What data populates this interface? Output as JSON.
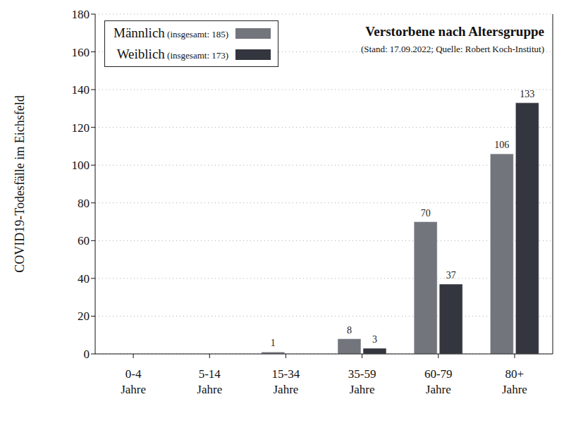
{
  "chart_data": {
    "type": "bar",
    "title": "Verstorbene nach Altersgruppe",
    "subtitle": "(Stand: 17.09.2022; Quelle: Robert Koch-Institut)",
    "y_label": "COVID19-Todesfälle im Eichsfeld",
    "categories": [
      "0-4 Jahre",
      "5-14 Jahre",
      "15-34 Jahre",
      "35-59 Jahre",
      "60-79 Jahre",
      "80+ Jahre"
    ],
    "series": [
      {
        "name": "Männlich (insgesamt: 185)",
        "color": "#72757c",
        "values": [
          0,
          0,
          1,
          8,
          70,
          106
        ]
      },
      {
        "name": "Weiblich (insgesamt: 173)",
        "color": "#33363e",
        "values": [
          0,
          0,
          0,
          3,
          37,
          133
        ]
      }
    ],
    "ylim": [
      0,
      180
    ],
    "yticks": [
      0,
      20,
      40,
      60,
      80,
      100,
      120,
      140,
      160,
      180
    ],
    "grid": true,
    "legend": "upper left",
    "data_labels": true
  }
}
